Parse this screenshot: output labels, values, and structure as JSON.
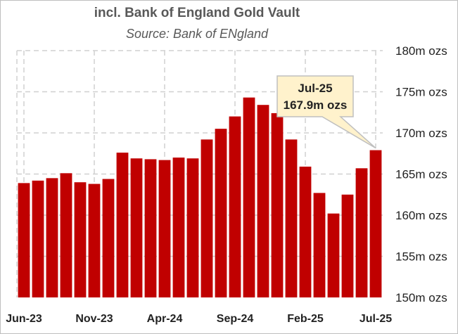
{
  "chart_data": {
    "type": "bar",
    "title": "incl. Bank of England Gold Vault",
    "subtitle": "Source: Bank of ENgland",
    "xlabel": "",
    "ylabel": "",
    "ylim": [
      150,
      180
    ],
    "y_ticks": [
      150,
      155,
      160,
      165,
      170,
      175,
      180
    ],
    "y_tick_labels": [
      "150m ozs",
      "155m ozs",
      "160m ozs",
      "165m ozs",
      "170m ozs",
      "175m ozs",
      "180m ozs"
    ],
    "x_tick_labels": [
      "Jun-23",
      "Nov-23",
      "Apr-24",
      "Sep-24",
      "Feb-25",
      "Jul-25"
    ],
    "x_tick_indices": [
      0,
      5,
      10,
      15,
      20,
      25
    ],
    "categories": [
      "Jun-23",
      "Jul-23",
      "Aug-23",
      "Sep-23",
      "Oct-23",
      "Nov-23",
      "Dec-23",
      "Jan-24",
      "Feb-24",
      "Mar-24",
      "Apr-24",
      "May-24",
      "Jun-24",
      "Jul-24",
      "Aug-24",
      "Sep-24",
      "Oct-24",
      "Nov-24",
      "Dec-24",
      "Jan-25",
      "Feb-25",
      "Mar-25",
      "Apr-25",
      "May-25",
      "Jun-25",
      "Jul-25"
    ],
    "values": [
      163.9,
      164.2,
      164.5,
      165.1,
      164.0,
      163.8,
      164.4,
      167.6,
      166.9,
      166.8,
      166.7,
      167.0,
      166.9,
      169.2,
      170.5,
      172.0,
      174.3,
      173.4,
      172.4,
      169.2,
      165.9,
      162.7,
      160.2,
      162.5,
      165.7,
      167.9
    ],
    "grid": true,
    "bar_color": "#c00000",
    "callout": {
      "line1": "Jul-25",
      "line2": "167.9m ozs",
      "fill": "#fff2cc",
      "stroke": "#bfbfbf"
    }
  }
}
